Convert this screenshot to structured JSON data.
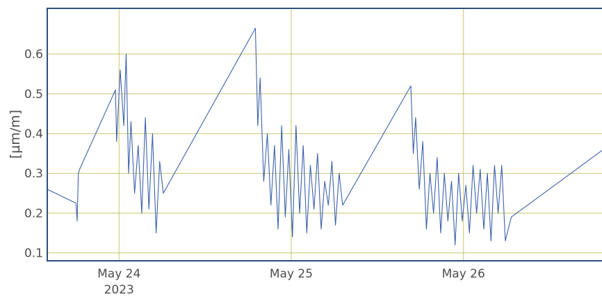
{
  "chart_data": {
    "type": "line",
    "ylabel": "[µm/m]",
    "ylim": [
      0.08,
      0.715
    ],
    "y_ticks": [
      0.1,
      0.2,
      0.3,
      0.4,
      0.5,
      0.6
    ],
    "x_axis": {
      "type": "date",
      "range": [
        "2023-05-23T14:00",
        "2023-05-26T19:30"
      ],
      "ticks": [
        {
          "date": "2023-05-24T00:00",
          "label": "May 24",
          "sublabel": "2023"
        },
        {
          "date": "2023-05-25T00:00",
          "label": "May 25",
          "sublabel": ""
        },
        {
          "date": "2023-05-26T00:00",
          "label": "May 26",
          "sublabel": ""
        }
      ]
    },
    "grid": true,
    "colors": {
      "series": "#3c61ab",
      "grid": "#b8b43a",
      "frame": "#2a4f7e"
    },
    "series": [
      {
        "x": [
          "2023-05-23T14:00",
          "2023-05-23T18:00",
          "2023-05-23T18:10",
          "2023-05-23T18:20",
          "2023-05-23T18:30",
          "2023-05-23T23:30",
          "2023-05-23T23:40",
          "2023-05-24T00:10",
          "2023-05-24T00:40",
          "2023-05-24T01:00",
          "2023-05-24T01:20",
          "2023-05-24T01:40",
          "2023-05-24T02:10",
          "2023-05-24T02:40",
          "2023-05-24T03:10",
          "2023-05-24T03:40",
          "2023-05-24T04:10",
          "2023-05-24T04:40",
          "2023-05-24T05:10",
          "2023-05-24T05:40",
          "2023-05-24T06:10",
          "2023-05-24T19:00",
          "2023-05-24T19:20",
          "2023-05-24T19:40",
          "2023-05-24T20:10",
          "2023-05-24T20:40",
          "2023-05-24T21:10",
          "2023-05-24T21:40",
          "2023-05-24T22:10",
          "2023-05-24T22:40",
          "2023-05-24T23:10",
          "2023-05-24T23:40",
          "2023-05-25T00:10",
          "2023-05-25T00:40",
          "2023-05-25T01:10",
          "2023-05-25T01:40",
          "2023-05-25T02:10",
          "2023-05-25T02:40",
          "2023-05-25T03:10",
          "2023-05-25T03:40",
          "2023-05-25T04:10",
          "2023-05-25T04:40",
          "2023-05-25T05:10",
          "2023-05-25T05:40",
          "2023-05-25T06:10",
          "2023-05-25T06:40",
          "2023-05-25T07:10",
          "2023-05-25T16:40",
          "2023-05-25T17:00",
          "2023-05-25T17:20",
          "2023-05-25T17:50",
          "2023-05-25T18:20",
          "2023-05-25T18:50",
          "2023-05-25T19:20",
          "2023-05-25T19:50",
          "2023-05-25T20:20",
          "2023-05-25T20:50",
          "2023-05-25T21:20",
          "2023-05-25T21:50",
          "2023-05-25T22:20",
          "2023-05-25T22:50",
          "2023-05-25T23:20",
          "2023-05-25T23:50",
          "2023-05-26T00:20",
          "2023-05-26T00:50",
          "2023-05-26T01:20",
          "2023-05-26T01:50",
          "2023-05-26T02:20",
          "2023-05-26T02:50",
          "2023-05-26T03:20",
          "2023-05-26T03:50",
          "2023-05-26T04:20",
          "2023-05-26T04:50",
          "2023-05-26T05:20",
          "2023-05-26T05:50",
          "2023-05-26T06:40",
          "2023-05-26T19:30"
        ],
        "y": [
          0.26,
          0.225,
          0.18,
          0.3,
          0.31,
          0.51,
          0.38,
          0.56,
          0.42,
          0.6,
          0.3,
          0.43,
          0.25,
          0.37,
          0.2,
          0.44,
          0.21,
          0.4,
          0.15,
          0.33,
          0.25,
          0.665,
          0.42,
          0.54,
          0.28,
          0.4,
          0.22,
          0.37,
          0.16,
          0.42,
          0.19,
          0.36,
          0.14,
          0.42,
          0.2,
          0.37,
          0.15,
          0.32,
          0.21,
          0.35,
          0.16,
          0.28,
          0.22,
          0.33,
          0.17,
          0.3,
          0.22,
          0.52,
          0.35,
          0.44,
          0.26,
          0.38,
          0.16,
          0.3,
          0.2,
          0.34,
          0.15,
          0.3,
          0.18,
          0.28,
          0.12,
          0.3,
          0.18,
          0.27,
          0.15,
          0.32,
          0.2,
          0.31,
          0.16,
          0.3,
          0.13,
          0.32,
          0.2,
          0.32,
          0.13,
          0.19,
          0.36
        ]
      }
    ]
  }
}
